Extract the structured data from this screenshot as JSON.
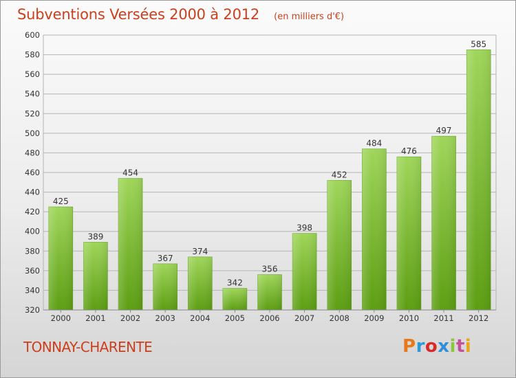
{
  "header": {
    "title": "Subventions Versées 2000 à 2012",
    "subtitle": "(en milliers d'€)"
  },
  "footer": {
    "town": "TONNAY-CHARENTE",
    "logo_text": "Proxiti"
  },
  "colors": {
    "title_text": "#cc3f1c",
    "bar_light": "#9fd65a",
    "bar_dark": "#5c9e12",
    "grid": "#b4b4b4",
    "axis_text": "#333333"
  },
  "chart_data": {
    "type": "bar",
    "title": "Subventions Versées 2000 à 2012",
    "subtitle": "(en milliers d'€)",
    "xlabel": "",
    "ylabel": "",
    "categories": [
      "2000",
      "2001",
      "2002",
      "2003",
      "2004",
      "2005",
      "2006",
      "2007",
      "2008",
      "2009",
      "2010",
      "2011",
      "2012"
    ],
    "values": [
      425,
      389,
      454,
      367,
      374,
      342,
      356,
      398,
      452,
      484,
      476,
      497,
      585
    ],
    "ylim": [
      320,
      600
    ],
    "yticks": [
      320,
      340,
      360,
      380,
      400,
      420,
      440,
      460,
      480,
      500,
      520,
      540,
      560,
      580,
      600
    ],
    "grid": "horizontal",
    "legend": "none",
    "data_labels": true
  }
}
